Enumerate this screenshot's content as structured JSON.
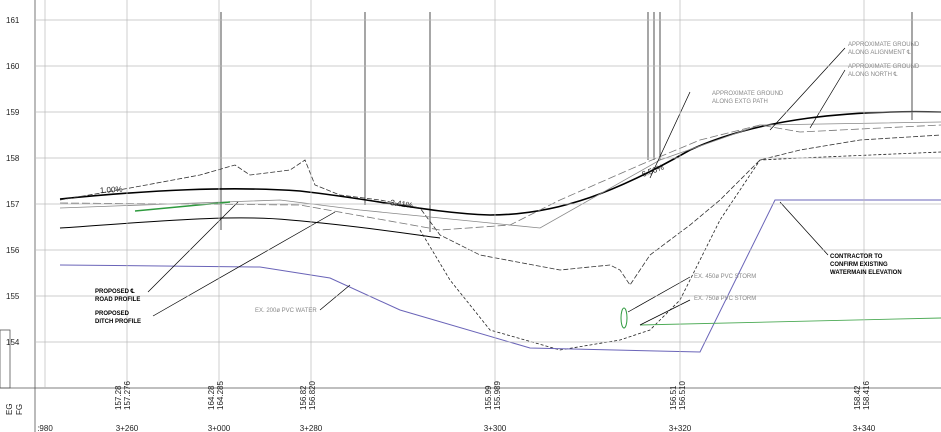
{
  "elevation_labels": [
    "161",
    "160",
    "159",
    "158",
    "157",
    "156",
    "155",
    "154"
  ],
  "stations": [
    ":980",
    "3+260",
    "3+000",
    "3+280",
    "3+300",
    "3+320",
    "3+340"
  ],
  "row_labels": [
    "EG",
    "FG"
  ],
  "station_values": [
    [
      "157.28",
      "157.276"
    ],
    [
      "164.28",
      "164.285"
    ],
    [
      "156.82",
      "156.820"
    ],
    [
      "155.99",
      "155.989"
    ],
    [
      "156.51",
      "156.510"
    ],
    [
      "158.42",
      "158.416"
    ]
  ],
  "grades": [
    "1.00%",
    "3.41%",
    "6.56%"
  ],
  "callouts": {
    "road": [
      "PROPOSED ℄",
      "ROAD PROFILE"
    ],
    "ditch": [
      "PROPOSED",
      "DITCH PROFILE"
    ],
    "water": "EX. 200ø PVC WATER",
    "path": [
      "APPROXIMATE GROUND",
      "ALONG EXTG PATH"
    ],
    "alignment": [
      "APPROXIMATE GROUND",
      "ALONG ALIGNMENT ℄"
    ],
    "north": [
      "APPROXIMATE GROUND",
      "ALONG NORTH ℄"
    ],
    "storm450": "EX. 450ø PVC STORM",
    "storm750": "EX. 750ø PVC STORM",
    "contractor": [
      "CONTRACTOR TO",
      "CONFIRM EXISTING",
      "WATERMAIN ELEVATION"
    ]
  }
}
